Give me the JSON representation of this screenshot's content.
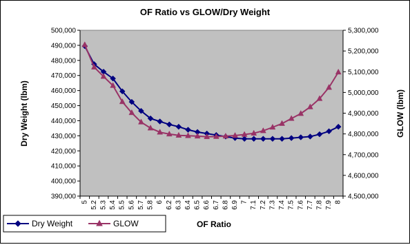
{
  "chart_data": {
    "type": "line",
    "title": "OF Ratio vs GLOW/Dry Weight",
    "xlabel": "OF Ratio",
    "ylabel": "Dry Weight (lbm)",
    "y2label": "GLOW (lbm)",
    "x": [
      "5",
      "5.2",
      "5.3",
      "5.4",
      "5.5",
      "5.6",
      "5.7",
      "5.8",
      "6",
      "6.2",
      "6.3",
      "6.4",
      "6.5",
      "6.6",
      "6.7",
      "6.8",
      "6.9",
      "7",
      "7.1",
      "7.2",
      "7.3",
      "7.4",
      "7.5",
      "7.6",
      "7.7",
      "7.8",
      "7.9",
      "8"
    ],
    "ylim": [
      390000,
      500000
    ],
    "y_ticks": [
      "500,000",
      "490,000",
      "480,000",
      "470,000",
      "460,000",
      "450,000",
      "440,000",
      "430,000",
      "420,000",
      "410,000",
      "400,000",
      "390,000"
    ],
    "y2lim": [
      4500000,
      5300000
    ],
    "y2_ticks": [
      "5,300,000",
      "5,200,000",
      "5,100,000",
      "5,000,000",
      "4,900,000",
      "4,800,000",
      "4,700,000",
      "4,600,000",
      "4,500,000"
    ],
    "plot_background": "#c0c0c0",
    "grid": false,
    "legend_position": "bottom-left",
    "series": [
      {
        "name": "Dry Weight",
        "axis": "left",
        "color": "#000080",
        "marker": "diamond",
        "values": [
          489500,
          477500,
          472500,
          468000,
          459500,
          452500,
          446500,
          441500,
          439500,
          437500,
          436000,
          434000,
          432500,
          431500,
          430500,
          429500,
          428500,
          428000,
          428000,
          428000,
          428000,
          428000,
          428500,
          429000,
          429500,
          431000,
          433000,
          436000
        ]
      },
      {
        "name": "GLOW",
        "axis": "right",
        "color": "#993366",
        "marker": "triangle",
        "values": [
          5230000,
          5122000,
          5077000,
          5033000,
          4955000,
          4902000,
          4857000,
          4828000,
          4808000,
          4799000,
          4793000,
          4791000,
          4789000,
          4786000,
          4787000,
          4789000,
          4792000,
          4797000,
          4803000,
          4815000,
          4832000,
          4850000,
          4874000,
          4898000,
          4930000,
          4970000,
          5024000,
          5098000
        ]
      }
    ]
  }
}
